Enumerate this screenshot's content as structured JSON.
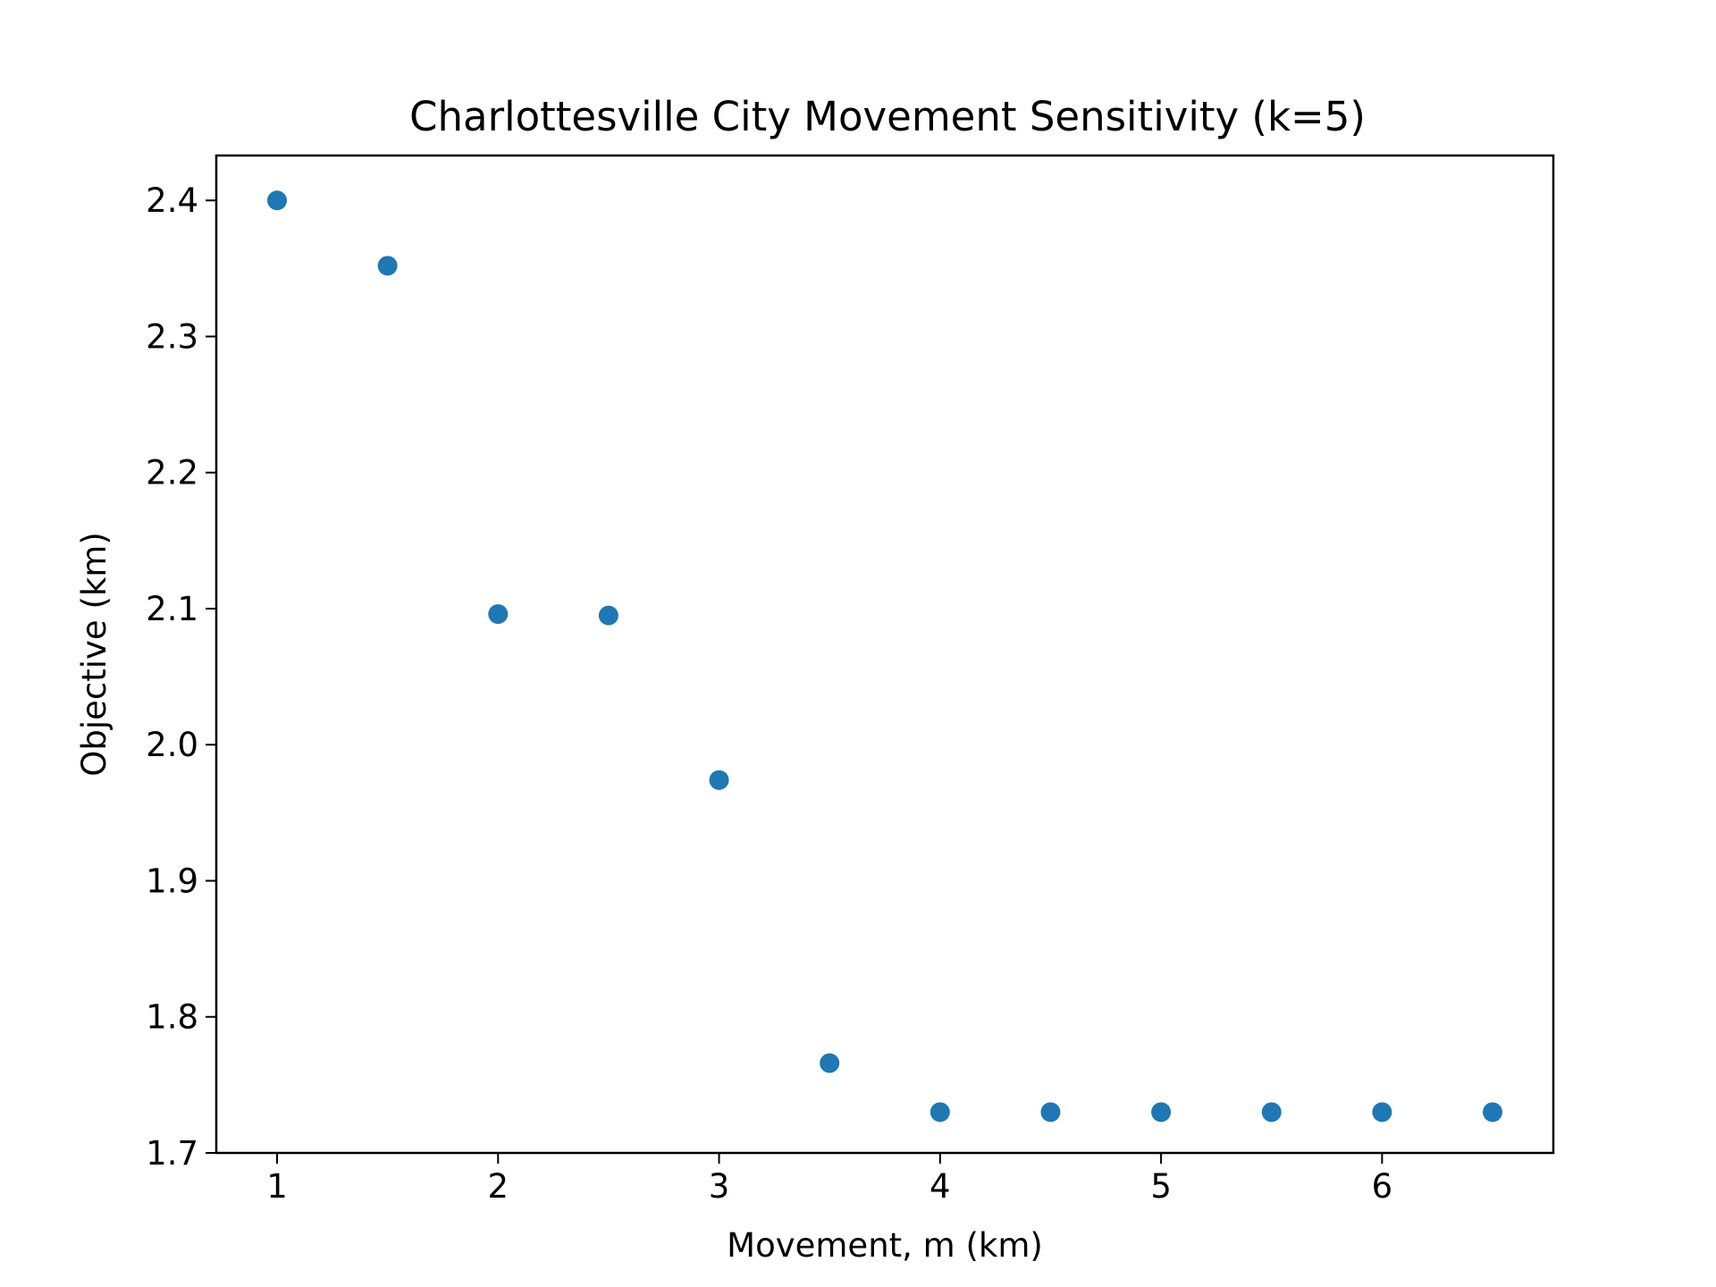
{
  "chart_data": {
    "type": "scatter",
    "title": "Charlottesville City Movement Sensitivity (k=5)",
    "xlabel": "Movement, m (km)",
    "ylabel": "Objective (km)",
    "xlim": [
      0.725,
      6.775
    ],
    "ylim": [
      1.7,
      2.433
    ],
    "xticks": [
      1,
      2,
      3,
      4,
      5,
      6
    ],
    "xtick_labels": [
      "1",
      "2",
      "3",
      "4",
      "5",
      "6"
    ],
    "yticks": [
      1.7,
      1.8,
      1.9,
      2.0,
      2.1,
      2.2,
      2.3,
      2.4
    ],
    "ytick_labels": [
      "1.7",
      "1.8",
      "1.9",
      "2.0",
      "2.1",
      "2.2",
      "2.3",
      "2.4"
    ],
    "grid": false,
    "marker_color": "#1f77b4",
    "series": [
      {
        "x": [
          1.0,
          1.5,
          2.0,
          2.5,
          3.0,
          3.5,
          4.0,
          4.5,
          5.0,
          5.5,
          6.0,
          6.5
        ],
        "y": [
          2.4,
          2.352,
          2.096,
          2.095,
          1.974,
          1.766,
          1.73,
          1.73,
          1.73,
          1.73,
          1.73,
          1.73
        ]
      }
    ]
  }
}
